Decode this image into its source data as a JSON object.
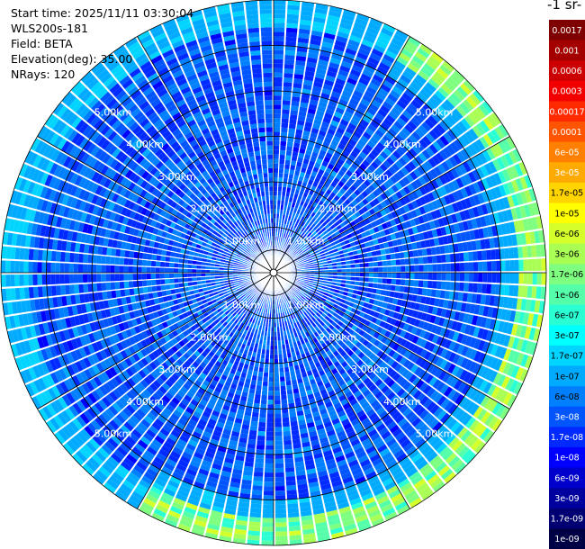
{
  "info": {
    "start_time": "Start time: 2025/11/11 03:30:04",
    "instrument": "WLS200s-181",
    "field": "Field: BETA",
    "elevation": "Elevation(deg): 35.00",
    "nrays": "NRays: 120"
  },
  "colorbar": {
    "title": "-1 sr-",
    "levels": [
      {
        "label": "0.0017",
        "color": "#7f0000",
        "text_color": "#ffffff"
      },
      {
        "label": "0.001",
        "color": "#a50000",
        "text_color": "#ffffff"
      },
      {
        "label": "0.0006",
        "color": "#cc0000",
        "text_color": "#ffffff"
      },
      {
        "label": "0.0003",
        "color": "#f20000",
        "text_color": "#ffffff"
      },
      {
        "label": "0.00017",
        "color": "#ff2a00",
        "text_color": "#ffffff"
      },
      {
        "label": "0.0001",
        "color": "#ff5500",
        "text_color": "#ffffff"
      },
      {
        "label": "6e-05",
        "color": "#ff7f00",
        "text_color": "#ffffff"
      },
      {
        "label": "3e-05",
        "color": "#ffaa00",
        "text_color": "#ffffff"
      },
      {
        "label": "1.7e-05",
        "color": "#ffd400",
        "text_color": "#000000"
      },
      {
        "label": "1e-05",
        "color": "#ffff00",
        "text_color": "#000000"
      },
      {
        "label": "6e-06",
        "color": "#d4ff2a",
        "text_color": "#000000"
      },
      {
        "label": "3e-06",
        "color": "#aaff55",
        "text_color": "#000000"
      },
      {
        "label": "1.7e-06",
        "color": "#7fff7f",
        "text_color": "#000000"
      },
      {
        "label": "1e-06",
        "color": "#55ffaa",
        "text_color": "#000000"
      },
      {
        "label": "6e-07",
        "color": "#2affd4",
        "text_color": "#000000"
      },
      {
        "label": "3e-07",
        "color": "#00ffff",
        "text_color": "#000000"
      },
      {
        "label": "1.7e-07",
        "color": "#00d4ff",
        "text_color": "#000000"
      },
      {
        "label": "1e-07",
        "color": "#00aaff",
        "text_color": "#000000"
      },
      {
        "label": "6e-08",
        "color": "#0080ff",
        "text_color": "#000000"
      },
      {
        "label": "3e-08",
        "color": "#0055ff",
        "text_color": "#ffffff"
      },
      {
        "label": "1.7e-08",
        "color": "#002aff",
        "text_color": "#ffffff"
      },
      {
        "label": "1e-08",
        "color": "#0000ff",
        "text_color": "#ffffff"
      },
      {
        "label": "6e-09",
        "color": "#0000cc",
        "text_color": "#ffffff"
      },
      {
        "label": "3e-09",
        "color": "#00009f",
        "text_color": "#ffffff"
      },
      {
        "label": "1.7e-09",
        "color": "#000072",
        "text_color": "#ffffff"
      },
      {
        "label": "1e-09",
        "color": "#000045",
        "text_color": "#ffffff"
      }
    ]
  },
  "chart_data": {
    "type": "heatmap",
    "projection": "polar (PPI scan)",
    "field": "BETA",
    "elevation_deg": 35.0,
    "n_rays": 120,
    "range_ring_labels": [
      "1.00km",
      "2.00km",
      "3.00km",
      "4.00km",
      "5.00km"
    ],
    "range_rings_km": [
      1,
      2,
      3,
      4,
      5
    ],
    "ring_label_bearings_deg": [
      315,
      45,
      135,
      225
    ],
    "max_range_km": 6.0,
    "azimuth_gridlines_deg": [
      0,
      30,
      60,
      90,
      120,
      150,
      180,
      210,
      240,
      270,
      300,
      330
    ],
    "grid": true,
    "data_summary": "Mostly 1e-08 to 6e-08 (blue) throughout; a ring of elevated backscatter (3e-07 to 6e-06, cyan-green-yellow) near 5.5-6 km range, strongest from about 30 to 210 deg azimuth; narrow outer band near 6 km on the west side.",
    "outer_band": {
      "range_km": [
        5.4,
        6.0
      ],
      "peak_value": "6e-06",
      "strong_azimuth_deg": [
        30,
        210
      ]
    },
    "typical_value": "3e-08"
  }
}
